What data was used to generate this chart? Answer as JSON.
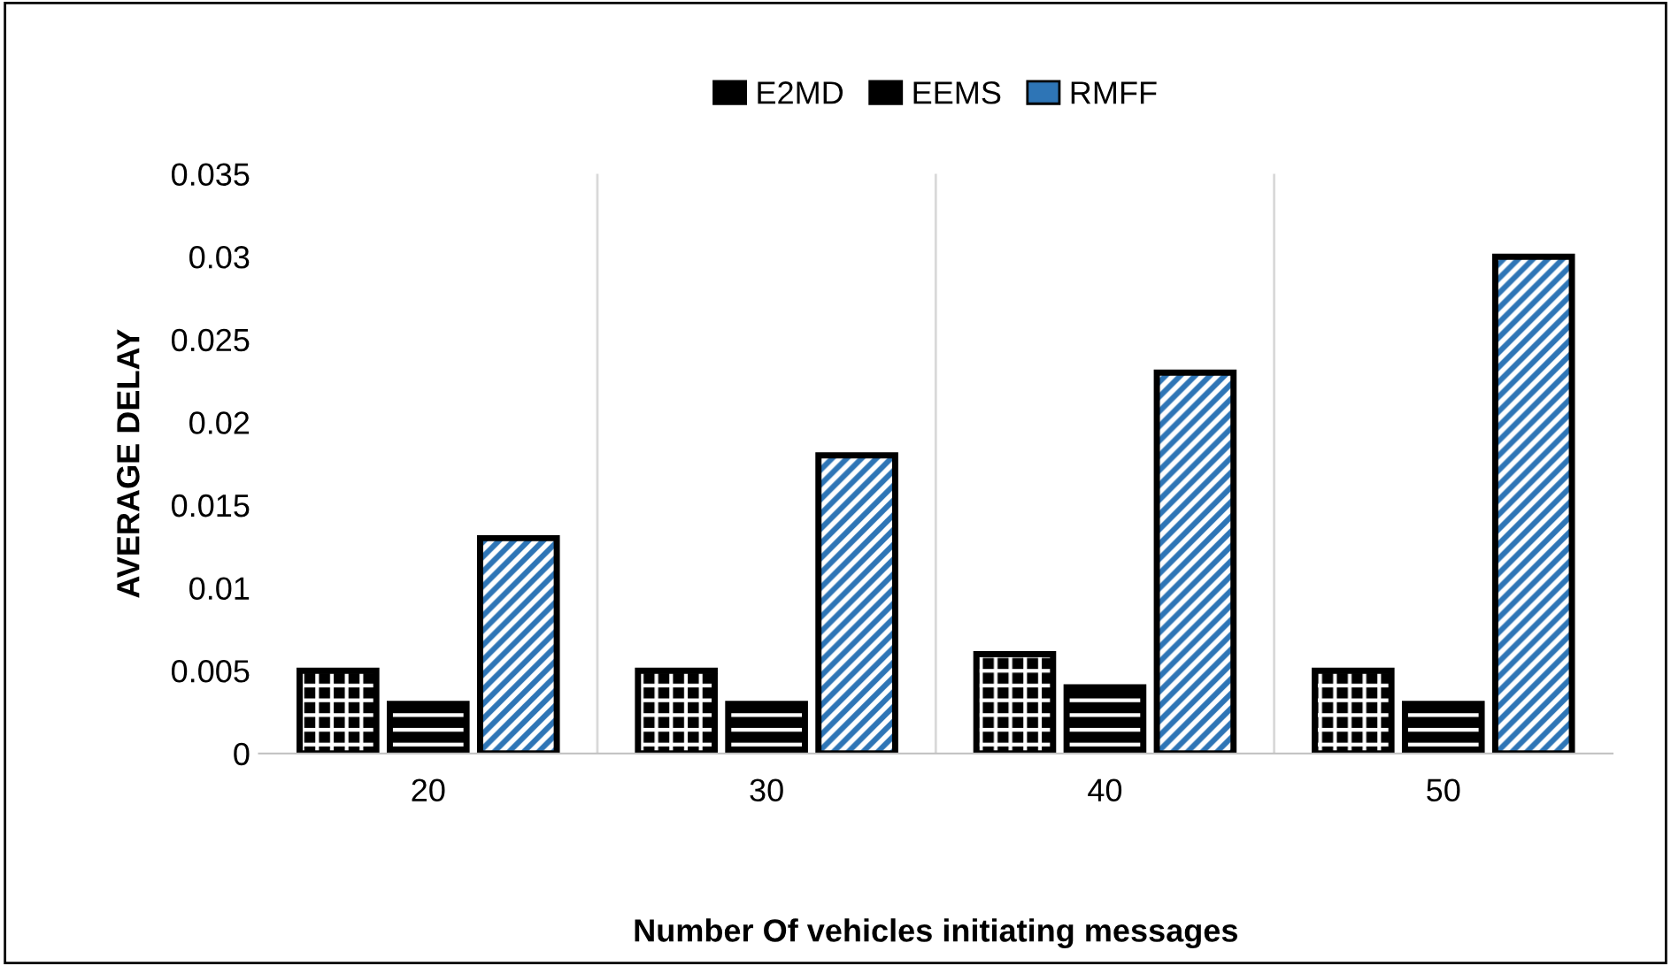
{
  "chart_data": {
    "type": "bar",
    "xlabel": "Number Of vehicles initiating messages",
    "ylabel": "AVERAGE DELAY",
    "categories": [
      "20",
      "30",
      "40",
      "50"
    ],
    "series": [
      {
        "name": "E2MD",
        "color": "#000000",
        "values": [
          0.005,
          0.005,
          0.006,
          0.005
        ]
      },
      {
        "name": "EEMS",
        "color": "#000000",
        "values": [
          0.003,
          0.003,
          0.004,
          0.003
        ]
      },
      {
        "name": "RMFF",
        "color": "#2e75b6",
        "values": [
          0.013,
          0.018,
          0.023,
          0.03
        ]
      }
    ],
    "ylim": [
      0,
      0.035
    ],
    "yticks": [
      0,
      0.005,
      0.01,
      0.015,
      0.02,
      0.025,
      0.03,
      0.035
    ],
    "grid": "x",
    "legend": "top"
  }
}
